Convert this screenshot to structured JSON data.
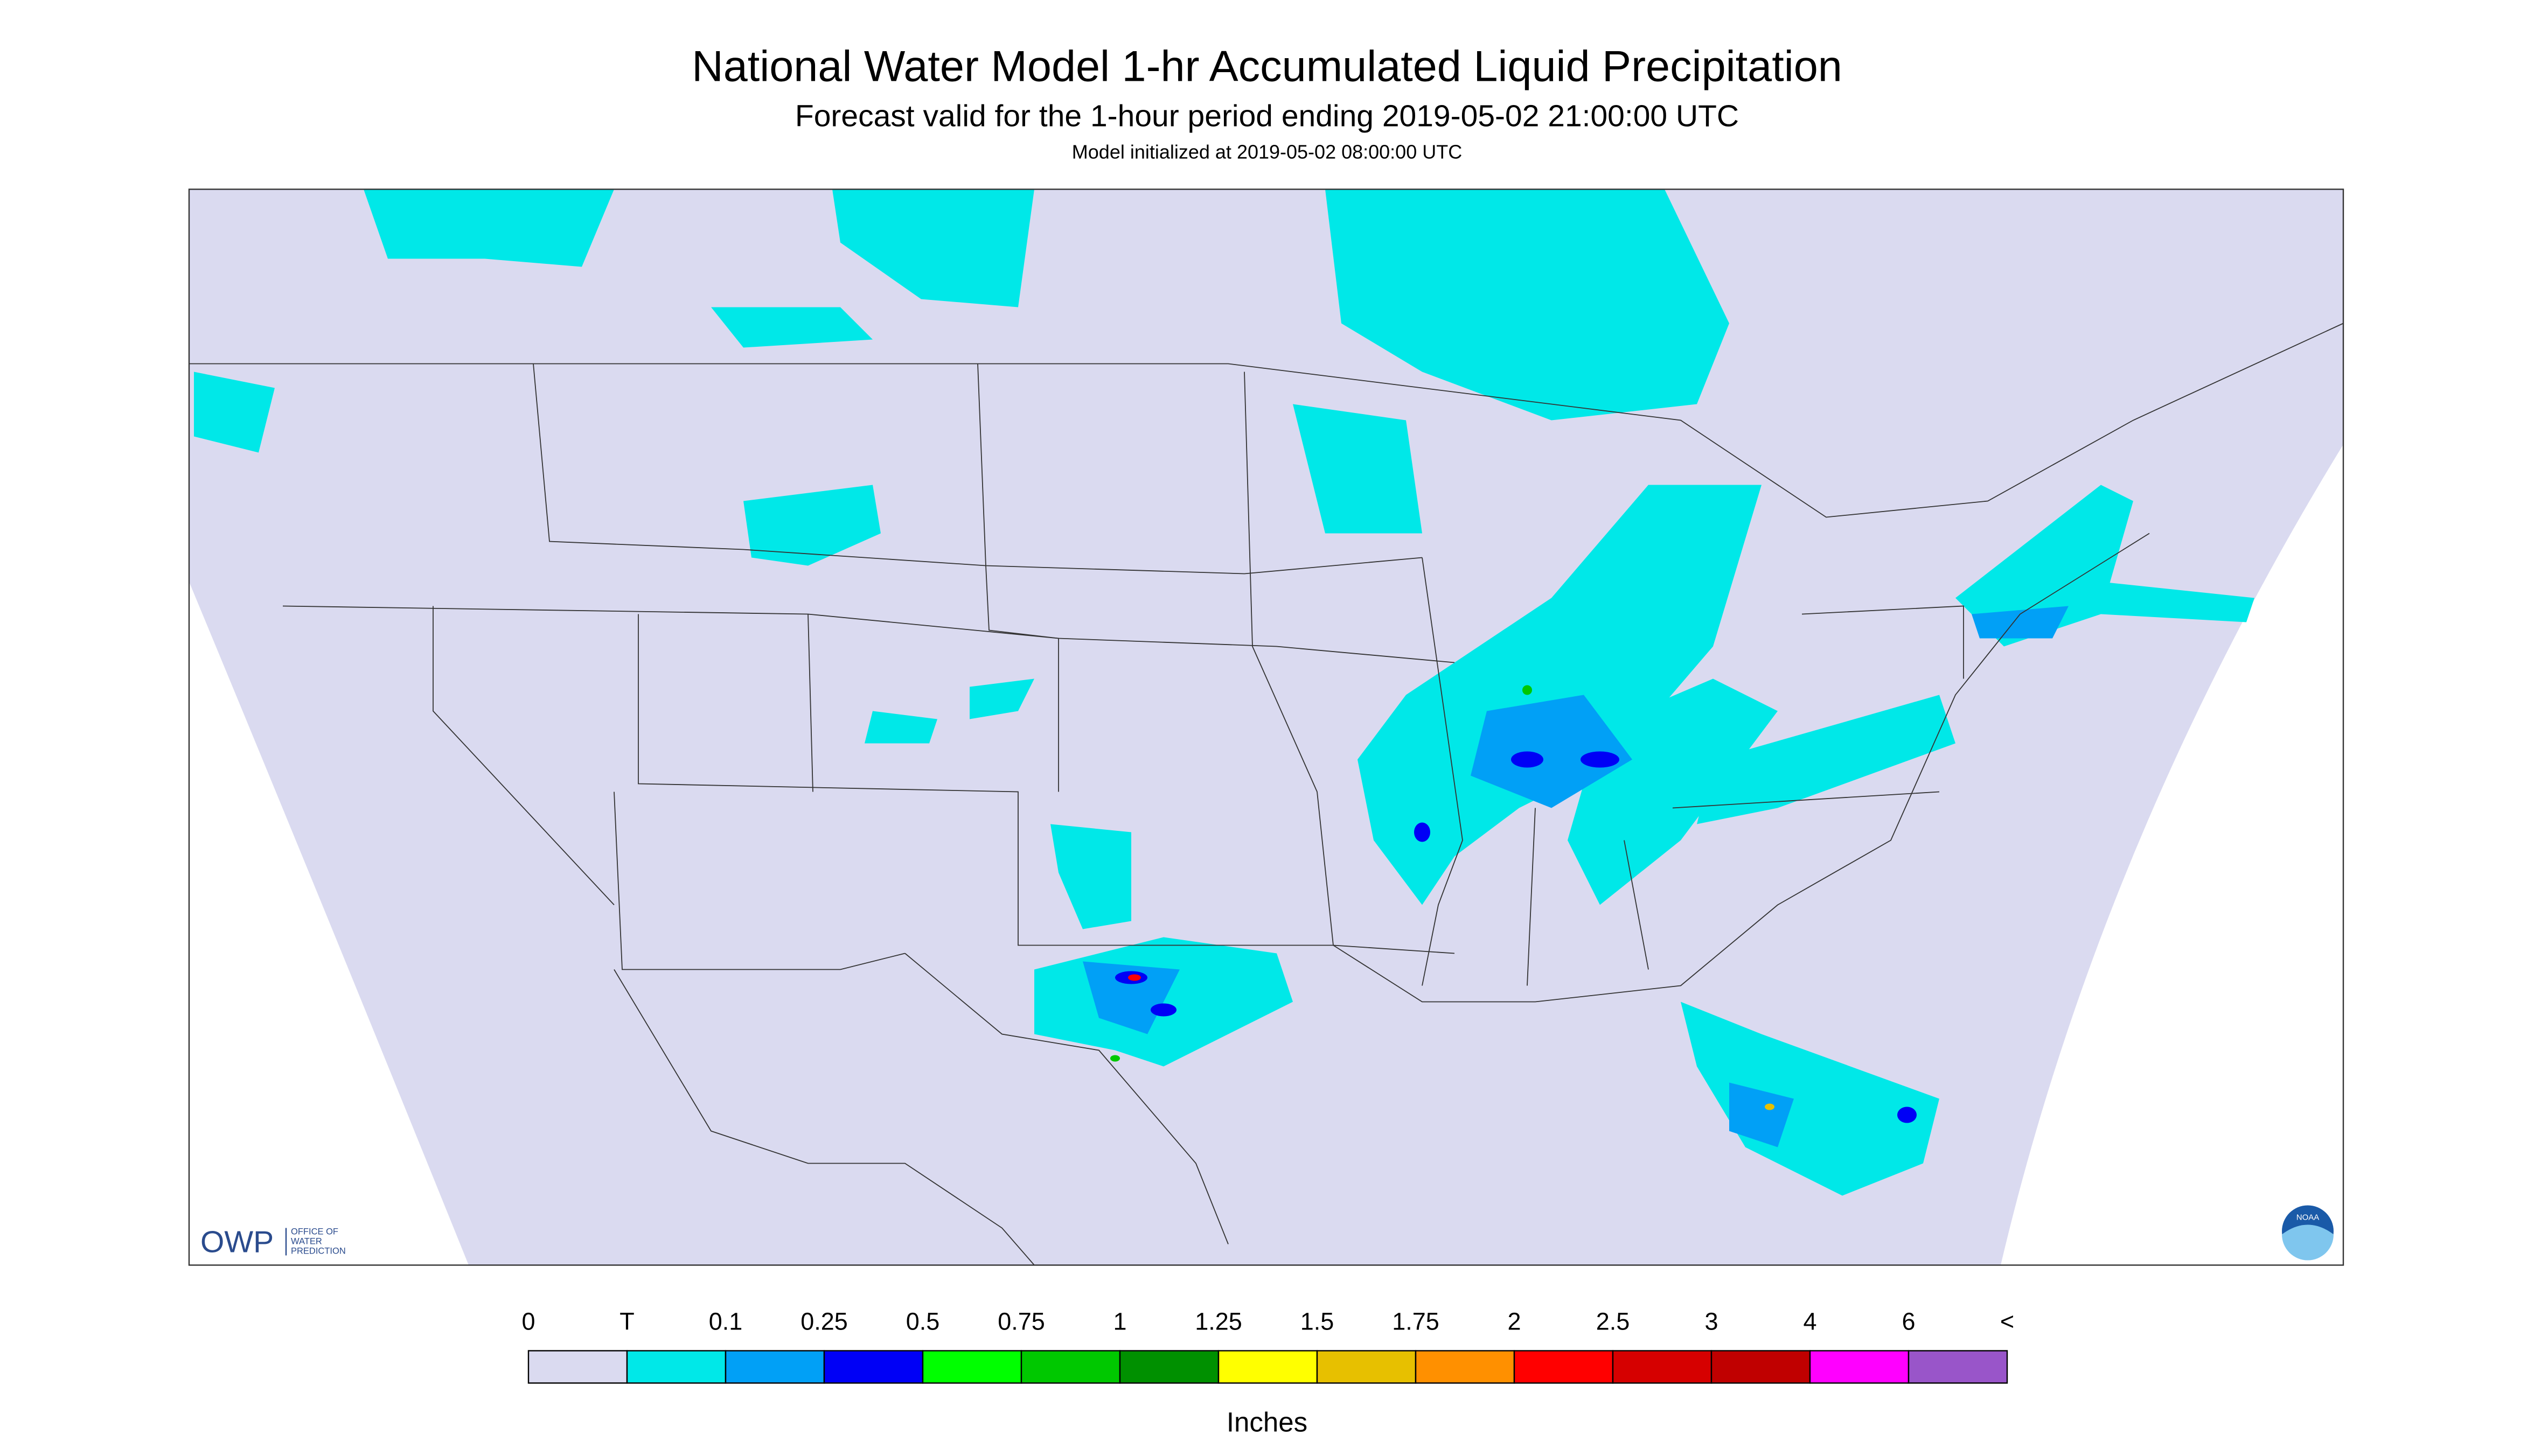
{
  "header": {
    "title": "National Water Model 1-hr Accumulated Liquid Precipitation",
    "subtitle": "Forecast valid for the 1-hour period ending 2019-05-02 21:00:00 UTC",
    "init": "Model initialized at 2019-05-02 08:00:00 UTC"
  },
  "legend": {
    "labels": [
      "0",
      "T",
      "0.1",
      "0.25",
      "0.5",
      "0.75",
      "1",
      "1.25",
      "1.5",
      "1.75",
      "2",
      "2.5",
      "3",
      "4",
      "6",
      "<"
    ],
    "colors": [
      "#dadaf0",
      "#00e8e8",
      "#01a0f6",
      "#0000f6",
      "#00ff00",
      "#00c800",
      "#009000",
      "#ffff00",
      "#e7c000",
      "#ff9000",
      "#ff0000",
      "#d60000",
      "#c00000",
      "#ff00ff",
      "#9955c9"
    ],
    "unit": "Inches"
  },
  "logos": {
    "owp": "OWP",
    "owp_lines": [
      "OFFICE OF",
      "WATER",
      "PREDICTION"
    ],
    "noaa": "NOAA"
  }
}
